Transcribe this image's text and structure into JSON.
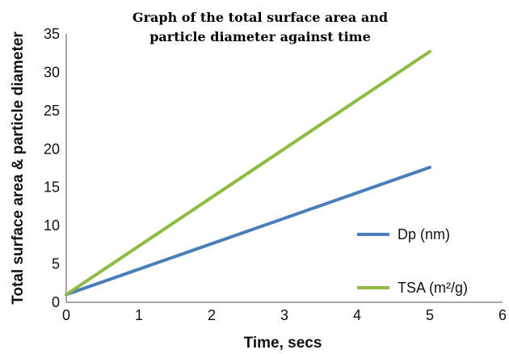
{
  "chart_data": {
    "type": "line",
    "title_lines": [
      "Graph of the total  surface area and",
      "particle diameter against time"
    ],
    "xlabel": "Time, secs",
    "ylabel": "Total surface area & particle diameter",
    "xlim": [
      0,
      6
    ],
    "ylim": [
      0,
      35
    ],
    "xticks": [
      "0",
      "1",
      "2",
      "3",
      "4",
      "5",
      "6"
    ],
    "yticks": [
      "0",
      "5",
      "10",
      "15",
      "20",
      "25",
      "30",
      "35"
    ],
    "grid": false,
    "legend_position": "right",
    "series": [
      {
        "name": "Dp (nm)",
        "color": "#4a7ebb",
        "x": [
          0,
          5
        ],
        "y": [
          1,
          17.6
        ]
      },
      {
        "name": "TSA (m²/g)",
        "color": "#8fba45",
        "x": [
          0,
          5
        ],
        "y": [
          1,
          32.7
        ]
      }
    ]
  }
}
